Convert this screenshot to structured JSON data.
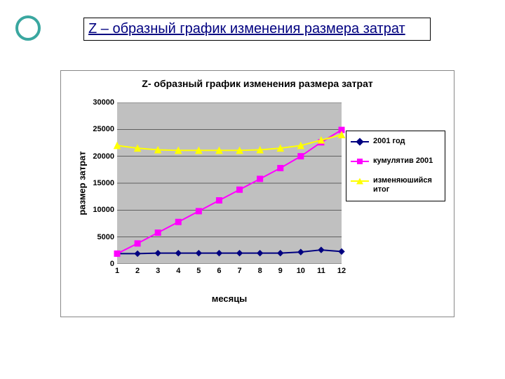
{
  "slide": {
    "ring_color": "#3aa7a0",
    "title": "Z – образный график изменения размера затрат",
    "title_color": "#000080"
  },
  "chart": {
    "type": "line",
    "title": "Z- образный график изменения размера затрат",
    "xlabel": "месяцы",
    "ylabel": "размер затрат",
    "background_color": "#ffffff",
    "plot_bg_color": "#c0c0c0",
    "grid_color": "#000000",
    "axis_color": "#000000",
    "title_fontsize": 14,
    "label_fontsize": 13,
    "tick_fontsize": 11,
    "x": {
      "values": [
        1,
        2,
        3,
        4,
        5,
        6,
        7,
        8,
        9,
        10,
        11,
        12
      ],
      "lim": [
        1,
        12
      ]
    },
    "y": {
      "ticks": [
        0,
        5000,
        10000,
        15000,
        20000,
        25000,
        30000
      ],
      "lim": [
        0,
        30000
      ]
    },
    "series": [
      {
        "name": "2001 год",
        "color": "#000080",
        "marker": "diamond",
        "line_width": 2,
        "marker_size": 8,
        "values": [
          1900,
          1900,
          2000,
          2000,
          2000,
          2000,
          2000,
          2000,
          2000,
          2200,
          2600,
          2300
        ]
      },
      {
        "name": "кумулятив 2001",
        "color": "#ff00ff",
        "marker": "square",
        "line_width": 2,
        "marker_size": 8,
        "values": [
          1900,
          3800,
          5800,
          7800,
          9800,
          11800,
          13800,
          15800,
          17800,
          20000,
          22600,
          24900
        ]
      },
      {
        "name": "изменяюшийся итог",
        "color": "#ffff00",
        "marker": "triangle",
        "line_width": 2,
        "marker_size": 9,
        "values": [
          22000,
          21500,
          21200,
          21100,
          21100,
          21100,
          21100,
          21200,
          21500,
          22000,
          23000,
          24000
        ]
      }
    ]
  }
}
